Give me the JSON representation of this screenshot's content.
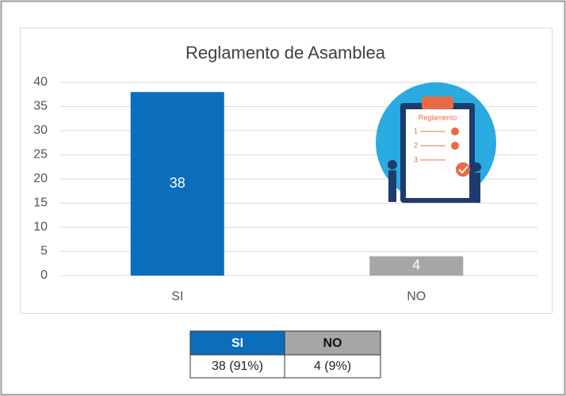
{
  "chart_data": {
    "type": "bar",
    "title": "Reglamento de Asamblea",
    "categories": [
      "SI",
      "NO"
    ],
    "values": [
      38,
      4
    ],
    "colors": [
      "#0a6ebd",
      "#a6a6a6"
    ],
    "ylim": [
      0,
      40
    ],
    "yticks": [
      0,
      5,
      10,
      15,
      20,
      25,
      30,
      35,
      40
    ],
    "grid": true
  },
  "illustration": {
    "label": "Reglamento",
    "items": [
      1,
      2,
      3
    ]
  },
  "table": {
    "header": [
      "SI",
      "NO"
    ],
    "rows": [
      [
        "38 (91%)",
        "4 (9%)"
      ]
    ]
  }
}
